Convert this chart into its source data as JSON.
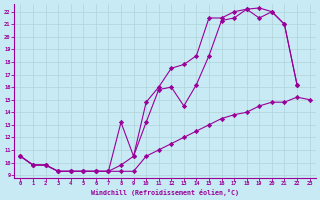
{
  "xlabel": "Windchill (Refroidissement éolien,°C)",
  "background_color": "#c8eaf4",
  "line_color": "#990099",
  "grid_color": "#b0d4d8",
  "xlim": [
    -0.5,
    23.5
  ],
  "ylim": [
    8.8,
    22.6
  ],
  "xticks": [
    0,
    1,
    2,
    3,
    4,
    5,
    6,
    7,
    8,
    9,
    10,
    11,
    12,
    13,
    14,
    15,
    16,
    17,
    18,
    19,
    20,
    21,
    22,
    23
  ],
  "yticks": [
    9,
    10,
    11,
    12,
    13,
    14,
    15,
    16,
    17,
    18,
    19,
    20,
    21,
    22
  ],
  "line1_x": [
    0,
    1,
    2,
    3,
    4,
    5,
    6,
    7,
    8,
    9,
    10,
    11,
    12,
    13,
    14,
    15,
    16,
    17,
    18,
    19,
    20,
    21,
    22,
    23
  ],
  "line1_y": [
    10.5,
    9.8,
    9.8,
    9.3,
    9.3,
    9.3,
    9.3,
    9.3,
    9.3,
    9.3,
    10.5,
    11.0,
    11.5,
    12.0,
    12.5,
    13.0,
    13.5,
    13.8,
    14.0,
    14.5,
    14.8,
    14.8,
    15.2,
    15.0
  ],
  "line2_x": [
    0,
    1,
    2,
    3,
    4,
    5,
    6,
    7,
    8,
    9,
    10,
    11,
    12,
    13,
    14,
    15,
    16,
    17,
    18,
    19,
    20,
    21,
    22
  ],
  "line2_y": [
    10.5,
    9.8,
    9.8,
    9.3,
    9.3,
    9.3,
    9.3,
    9.3,
    9.8,
    10.5,
    13.2,
    15.8,
    16.0,
    14.5,
    16.2,
    18.5,
    21.3,
    21.5,
    22.2,
    22.3,
    22.0,
    21.0,
    16.2
  ],
  "line3_x": [
    0,
    1,
    2,
    3,
    4,
    5,
    6,
    7,
    8,
    9,
    10,
    11,
    12,
    13,
    14,
    15,
    16,
    17,
    18,
    19,
    20,
    21,
    22
  ],
  "line3_y": [
    10.5,
    9.8,
    9.8,
    9.3,
    9.3,
    9.3,
    9.3,
    9.3,
    13.2,
    10.5,
    14.8,
    16.0,
    17.5,
    17.8,
    18.5,
    21.5,
    21.5,
    22.0,
    22.2,
    21.5,
    22.0,
    21.0,
    16.2
  ]
}
